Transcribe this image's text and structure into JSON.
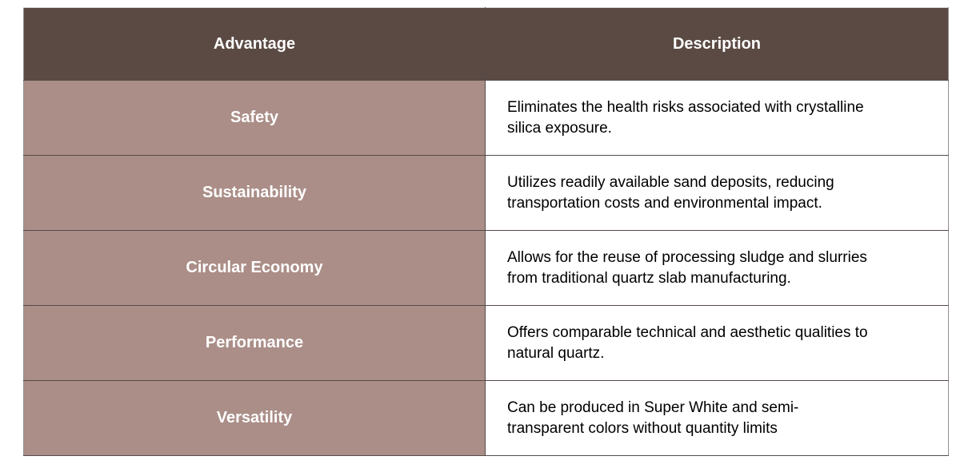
{
  "table": {
    "columns": [
      {
        "label": "Advantage"
      },
      {
        "label": "Description"
      }
    ],
    "rows": [
      {
        "advantage": "Safety",
        "description": "Eliminates the health risks associated with crystalline\nsilica exposure."
      },
      {
        "advantage": "Sustainability",
        "description": "Utilizes readily available sand deposits, reducing\ntransportation costs and environmental impact."
      },
      {
        "advantage": "Circular Economy",
        "description": "Allows for the reuse of processing sludge and slurries\nfrom traditional quartz slab manufacturing."
      },
      {
        "advantage": "Performance",
        "description": "Offers comparable technical and aesthetic qualities to\nnatural quartz."
      },
      {
        "advantage": "Versatility",
        "description": "Can be produced in Super White and semi-\ntransparent colors without quantity limits"
      }
    ],
    "colors": {
      "header_bg": "#5b4a44",
      "header_text": "#ffffff",
      "advantage_bg": "#ab8e88",
      "advantage_text": "#ffffff",
      "description_bg": "#ffffff",
      "description_text": "#000000",
      "grid_line": "#544c4a",
      "outer_edge": "#969090"
    }
  }
}
